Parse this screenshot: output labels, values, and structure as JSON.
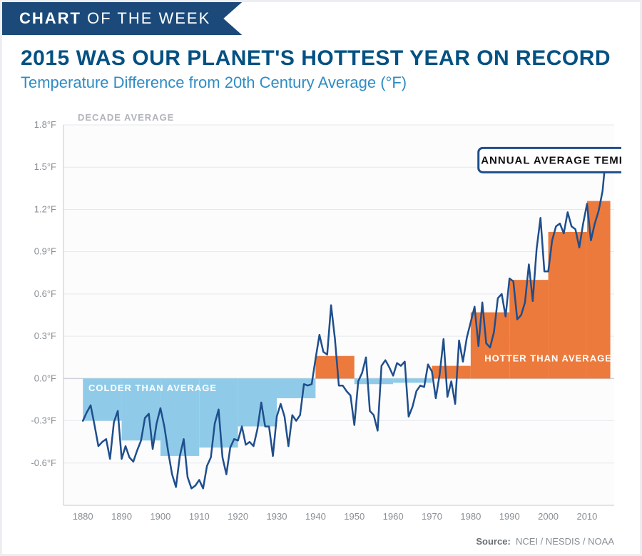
{
  "ribbon": {
    "bold": "CHART",
    "rest": " OF THE WEEK"
  },
  "title": "2015 WAS OUR PLANET'S HOTTEST YEAR ON RECORD",
  "subtitle": "Temperature Difference from 20th Century Average (°F)",
  "decade_label": "DECADE AVERAGE",
  "annotation_label": "ANNUAL AVERAGE TEMPERATURE",
  "region_cold_label": "COLDER THAN AVERAGE",
  "region_hot_label": "HOTTER THAN AVERAGE",
  "source_prefix": "Source:",
  "source_text": "NCEI / NESDIS / NOAA",
  "chart": {
    "type": "combo-bar-line",
    "background": "#ffffff",
    "grid_color": "#e6e8ec",
    "axis_color": "#c2c7ce",
    "line_color": "#1f4e8c",
    "line_width": 2.5,
    "bar_pos_color": "#ec7a3c",
    "bar_neg_color": "#8fcbe8",
    "bar_mid_color": "#bfe1f1",
    "cold_label_color": "#ffffff",
    "hot_label_color": "#ffffff",
    "ribbon_bg": "#1b4a7a",
    "title_color": "#035182",
    "subtitle_color": "#2f8cc4",
    "ylim": [
      -0.9,
      1.8
    ],
    "yticks": [
      -0.6,
      -0.3,
      0.0,
      0.3,
      0.6,
      0.9,
      1.2,
      1.5,
      1.8
    ],
    "ytick_labels": [
      "-0.6°F",
      "-0.3°F",
      "0.0°F",
      "0.3°F",
      "0.6°F",
      "0.9°F",
      "1.2°F",
      "1.5°F",
      "1.8°F"
    ],
    "xlim": [
      1875,
      2017
    ],
    "xticks": [
      1880,
      1890,
      1900,
      1910,
      1920,
      1930,
      1940,
      1950,
      1960,
      1970,
      1980,
      1990,
      2000,
      2010
    ],
    "decade_bars": [
      {
        "x0": 1880,
        "x1": 1890,
        "v": -0.3
      },
      {
        "x0": 1890,
        "x1": 1900,
        "v": -0.44
      },
      {
        "x0": 1900,
        "x1": 1910,
        "v": -0.55
      },
      {
        "x0": 1910,
        "x1": 1920,
        "v": -0.49
      },
      {
        "x0": 1920,
        "x1": 1930,
        "v": -0.34
      },
      {
        "x0": 1930,
        "x1": 1940,
        "v": -0.14
      },
      {
        "x0": 1940,
        "x1": 1950,
        "v": 0.16
      },
      {
        "x0": 1950,
        "x1": 1960,
        "v": -0.04
      },
      {
        "x0": 1960,
        "x1": 1970,
        "v": -0.03
      },
      {
        "x0": 1970,
        "x1": 1980,
        "v": 0.09
      },
      {
        "x0": 1980,
        "x1": 1990,
        "v": 0.47
      },
      {
        "x0": 1990,
        "x1": 2000,
        "v": 0.7
      },
      {
        "x0": 2000,
        "x1": 2010,
        "v": 1.04
      },
      {
        "x0": 2010,
        "x1": 2016,
        "v": 1.26
      }
    ],
    "line_series": [
      {
        "x": 1880,
        "y": -0.3
      },
      {
        "x": 1881,
        "y": -0.24
      },
      {
        "x": 1882,
        "y": -0.19
      },
      {
        "x": 1883,
        "y": -0.33
      },
      {
        "x": 1884,
        "y": -0.48
      },
      {
        "x": 1885,
        "y": -0.45
      },
      {
        "x": 1886,
        "y": -0.43
      },
      {
        "x": 1887,
        "y": -0.57
      },
      {
        "x": 1888,
        "y": -0.31
      },
      {
        "x": 1889,
        "y": -0.23
      },
      {
        "x": 1890,
        "y": -0.57
      },
      {
        "x": 1891,
        "y": -0.48
      },
      {
        "x": 1892,
        "y": -0.56
      },
      {
        "x": 1893,
        "y": -0.59
      },
      {
        "x": 1894,
        "y": -0.51
      },
      {
        "x": 1895,
        "y": -0.44
      },
      {
        "x": 1896,
        "y": -0.28
      },
      {
        "x": 1897,
        "y": -0.25
      },
      {
        "x": 1898,
        "y": -0.5
      },
      {
        "x": 1899,
        "y": -0.32
      },
      {
        "x": 1900,
        "y": -0.21
      },
      {
        "x": 1901,
        "y": -0.34
      },
      {
        "x": 1902,
        "y": -0.52
      },
      {
        "x": 1903,
        "y": -0.68
      },
      {
        "x": 1904,
        "y": -0.77
      },
      {
        "x": 1905,
        "y": -0.55
      },
      {
        "x": 1906,
        "y": -0.43
      },
      {
        "x": 1907,
        "y": -0.7
      },
      {
        "x": 1908,
        "y": -0.78
      },
      {
        "x": 1909,
        "y": -0.76
      },
      {
        "x": 1910,
        "y": -0.72
      },
      {
        "x": 1911,
        "y": -0.78
      },
      {
        "x": 1912,
        "y": -0.62
      },
      {
        "x": 1913,
        "y": -0.56
      },
      {
        "x": 1914,
        "y": -0.32
      },
      {
        "x": 1915,
        "y": -0.22
      },
      {
        "x": 1916,
        "y": -0.56
      },
      {
        "x": 1917,
        "y": -0.68
      },
      {
        "x": 1918,
        "y": -0.49
      },
      {
        "x": 1919,
        "y": -0.43
      },
      {
        "x": 1920,
        "y": -0.44
      },
      {
        "x": 1921,
        "y": -0.34
      },
      {
        "x": 1922,
        "y": -0.47
      },
      {
        "x": 1923,
        "y": -0.45
      },
      {
        "x": 1924,
        "y": -0.48
      },
      {
        "x": 1925,
        "y": -0.36
      },
      {
        "x": 1926,
        "y": -0.17
      },
      {
        "x": 1927,
        "y": -0.34
      },
      {
        "x": 1928,
        "y": -0.34
      },
      {
        "x": 1929,
        "y": -0.55
      },
      {
        "x": 1930,
        "y": -0.27
      },
      {
        "x": 1931,
        "y": -0.18
      },
      {
        "x": 1932,
        "y": -0.27
      },
      {
        "x": 1933,
        "y": -0.48
      },
      {
        "x": 1934,
        "y": -0.26
      },
      {
        "x": 1935,
        "y": -0.3
      },
      {
        "x": 1936,
        "y": -0.26
      },
      {
        "x": 1937,
        "y": -0.04
      },
      {
        "x": 1938,
        "y": -0.05
      },
      {
        "x": 1939,
        "y": -0.04
      },
      {
        "x": 1940,
        "y": 0.14
      },
      {
        "x": 1941,
        "y": 0.31
      },
      {
        "x": 1942,
        "y": 0.19
      },
      {
        "x": 1943,
        "y": 0.17
      },
      {
        "x": 1944,
        "y": 0.52
      },
      {
        "x": 1945,
        "y": 0.28
      },
      {
        "x": 1946,
        "y": -0.05
      },
      {
        "x": 1947,
        "y": -0.05
      },
      {
        "x": 1948,
        "y": -0.09
      },
      {
        "x": 1949,
        "y": -0.12
      },
      {
        "x": 1950,
        "y": -0.33
      },
      {
        "x": 1951,
        "y": -0.02
      },
      {
        "x": 1952,
        "y": 0.04
      },
      {
        "x": 1953,
        "y": 0.15
      },
      {
        "x": 1954,
        "y": -0.23
      },
      {
        "x": 1955,
        "y": -0.26
      },
      {
        "x": 1956,
        "y": -0.37
      },
      {
        "x": 1957,
        "y": 0.09
      },
      {
        "x": 1958,
        "y": 0.13
      },
      {
        "x": 1959,
        "y": 0.08
      },
      {
        "x": 1960,
        "y": 0.02
      },
      {
        "x": 1961,
        "y": 0.11
      },
      {
        "x": 1962,
        "y": 0.09
      },
      {
        "x": 1963,
        "y": 0.12
      },
      {
        "x": 1964,
        "y": -0.27
      },
      {
        "x": 1965,
        "y": -0.2
      },
      {
        "x": 1966,
        "y": -0.09
      },
      {
        "x": 1967,
        "y": -0.05
      },
      {
        "x": 1968,
        "y": -0.06
      },
      {
        "x": 1969,
        "y": 0.1
      },
      {
        "x": 1970,
        "y": 0.05
      },
      {
        "x": 1971,
        "y": -0.14
      },
      {
        "x": 1972,
        "y": 0.03
      },
      {
        "x": 1973,
        "y": 0.28
      },
      {
        "x": 1974,
        "y": -0.13
      },
      {
        "x": 1975,
        "y": -0.02
      },
      {
        "x": 1976,
        "y": -0.18
      },
      {
        "x": 1977,
        "y": 0.27
      },
      {
        "x": 1978,
        "y": 0.12
      },
      {
        "x": 1979,
        "y": 0.29
      },
      {
        "x": 1980,
        "y": 0.4
      },
      {
        "x": 1981,
        "y": 0.51
      },
      {
        "x": 1982,
        "y": 0.23
      },
      {
        "x": 1983,
        "y": 0.54
      },
      {
        "x": 1984,
        "y": 0.25
      },
      {
        "x": 1985,
        "y": 0.22
      },
      {
        "x": 1986,
        "y": 0.33
      },
      {
        "x": 1987,
        "y": 0.57
      },
      {
        "x": 1988,
        "y": 0.6
      },
      {
        "x": 1989,
        "y": 0.44
      },
      {
        "x": 1990,
        "y": 0.71
      },
      {
        "x": 1991,
        "y": 0.69
      },
      {
        "x": 1992,
        "y": 0.42
      },
      {
        "x": 1993,
        "y": 0.45
      },
      {
        "x": 1994,
        "y": 0.54
      },
      {
        "x": 1995,
        "y": 0.81
      },
      {
        "x": 1996,
        "y": 0.55
      },
      {
        "x": 1997,
        "y": 0.92
      },
      {
        "x": 1998,
        "y": 1.14
      },
      {
        "x": 1999,
        "y": 0.76
      },
      {
        "x": 2000,
        "y": 0.76
      },
      {
        "x": 2001,
        "y": 0.98
      },
      {
        "x": 2002,
        "y": 1.08
      },
      {
        "x": 2003,
        "y": 1.1
      },
      {
        "x": 2004,
        "y": 1.03
      },
      {
        "x": 2005,
        "y": 1.18
      },
      {
        "x": 2006,
        "y": 1.08
      },
      {
        "x": 2007,
        "y": 1.06
      },
      {
        "x": 2008,
        "y": 0.93
      },
      {
        "x": 2009,
        "y": 1.1
      },
      {
        "x": 2010,
        "y": 1.24
      },
      {
        "x": 2011,
        "y": 0.98
      },
      {
        "x": 2012,
        "y": 1.1
      },
      {
        "x": 2013,
        "y": 1.19
      },
      {
        "x": 2014,
        "y": 1.33
      },
      {
        "x": 2015,
        "y": 1.62
      }
    ]
  }
}
